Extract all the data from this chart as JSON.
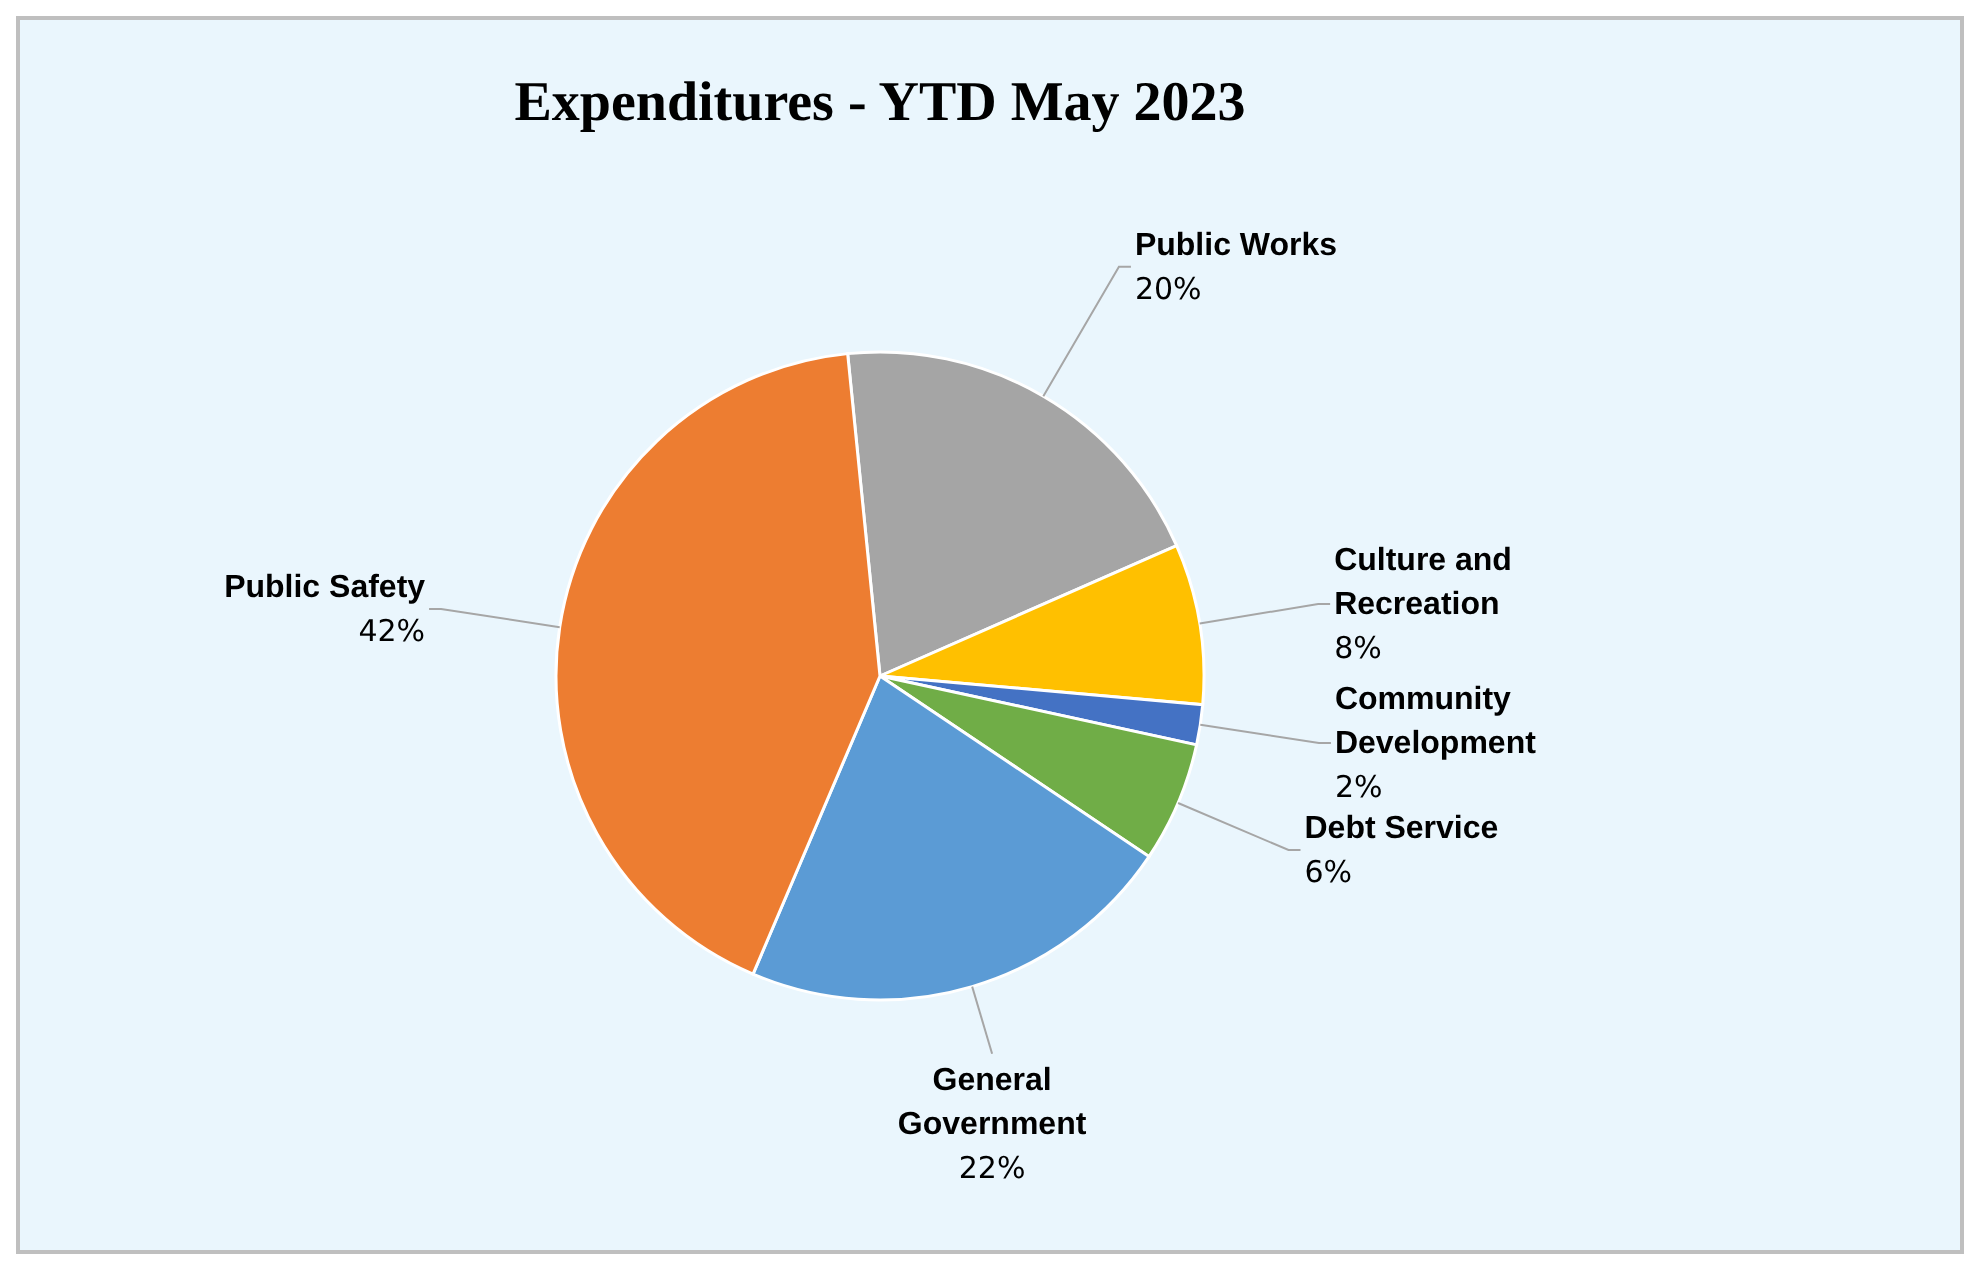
{
  "chart_data": {
    "type": "pie",
    "title": "Expenditures - YTD May 2023",
    "categories": [
      "Public Works",
      "Culture and Recreation",
      "Community Development",
      "Debt Service",
      "General Government",
      "Public Safety"
    ],
    "values": [
      20,
      8,
      2,
      6,
      22,
      42
    ],
    "value_labels": [
      "20%",
      "8%",
      "2%",
      "6%",
      "22%",
      "42%"
    ],
    "colors": [
      "#a5a5a5",
      "#ffc000",
      "#4472c4",
      "#70ad47",
      "#5b9bd5",
      "#ed7d31"
    ]
  }
}
